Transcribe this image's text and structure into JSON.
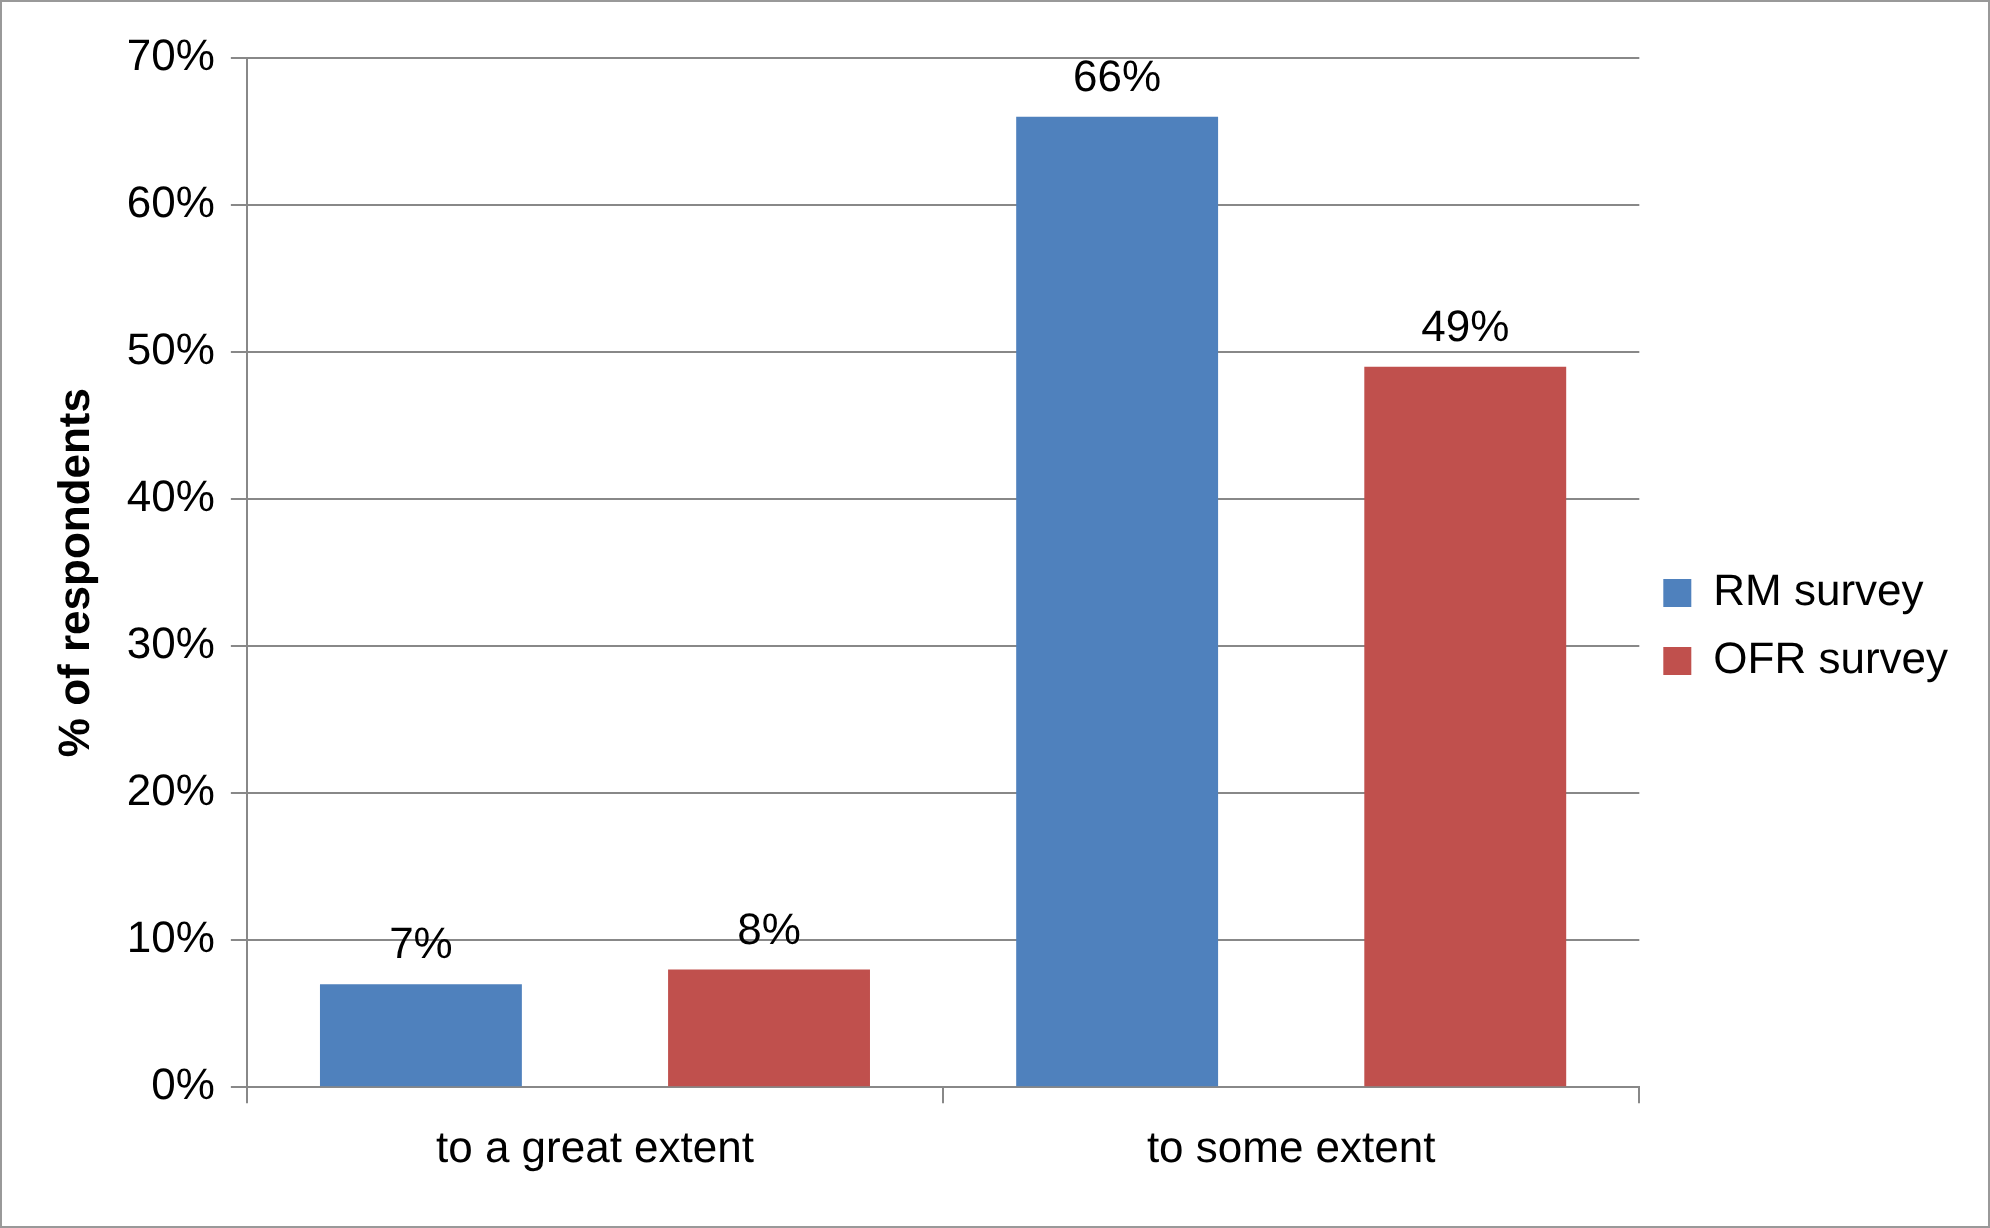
{
  "chart_data": {
    "type": "bar",
    "ylabel": "% of respondents",
    "categories": [
      "to a great extent",
      "to some extent"
    ],
    "series": [
      {
        "name": "RM survey",
        "color": "#4f81bd",
        "values": [
          7,
          66
        ],
        "value_labels": [
          "7%",
          "66%"
        ]
      },
      {
        "name": "OFR survey",
        "color": "#c0504d",
        "values": [
          8,
          49
        ],
        "value_labels": [
          "8%",
          "49%"
        ]
      }
    ],
    "ylim": [
      0,
      70
    ],
    "yticks": [
      {
        "value": 0,
        "label": "0%"
      },
      {
        "value": 10,
        "label": "10%"
      },
      {
        "value": 20,
        "label": "20%"
      },
      {
        "value": 30,
        "label": "30%"
      },
      {
        "value": 40,
        "label": "40%"
      },
      {
        "value": 50,
        "label": "50%"
      },
      {
        "value": 60,
        "label": "60%"
      },
      {
        "value": 70,
        "label": "70%"
      }
    ],
    "grid": "y",
    "legend": "right"
  }
}
